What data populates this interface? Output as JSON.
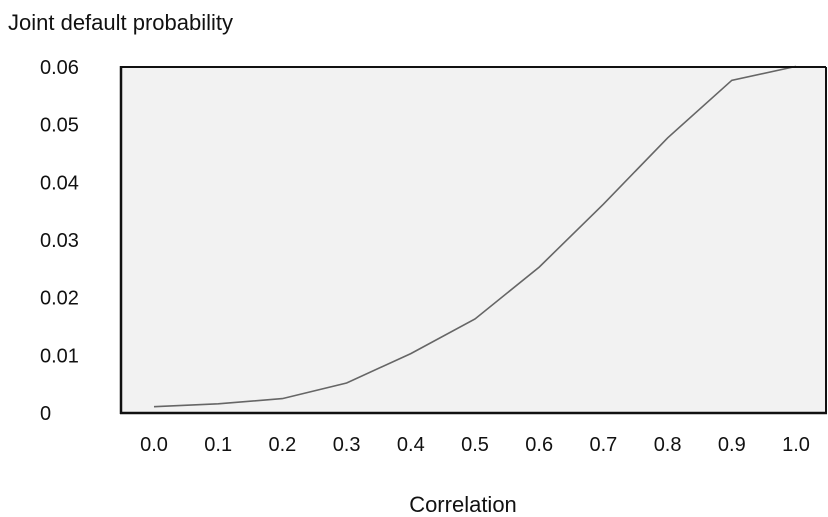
{
  "chart_data": {
    "type": "line",
    "title": "",
    "ylabel": "Joint default probability",
    "xlabel": "Correlation",
    "x": [
      "0.0",
      "0.1",
      "0.2",
      "0.3",
      "0.4",
      "0.5",
      "0.6",
      "0.7",
      "0.8",
      "0.9",
      "1.0"
    ],
    "y": [
      0.0011,
      0.0016,
      0.0025,
      0.0052,
      0.0103,
      0.0163,
      0.0253,
      0.0362,
      0.0477,
      0.0577,
      0.0601
    ],
    "yticks": [
      "0",
      "0.01",
      "0.02",
      "0.03",
      "0.04",
      "0.05",
      "0.06"
    ],
    "ylim": [
      0,
      0.06
    ],
    "grid": false,
    "colors": {
      "plot_background": "#f2f2f2",
      "line": "#666666",
      "axis": "#111111"
    }
  }
}
